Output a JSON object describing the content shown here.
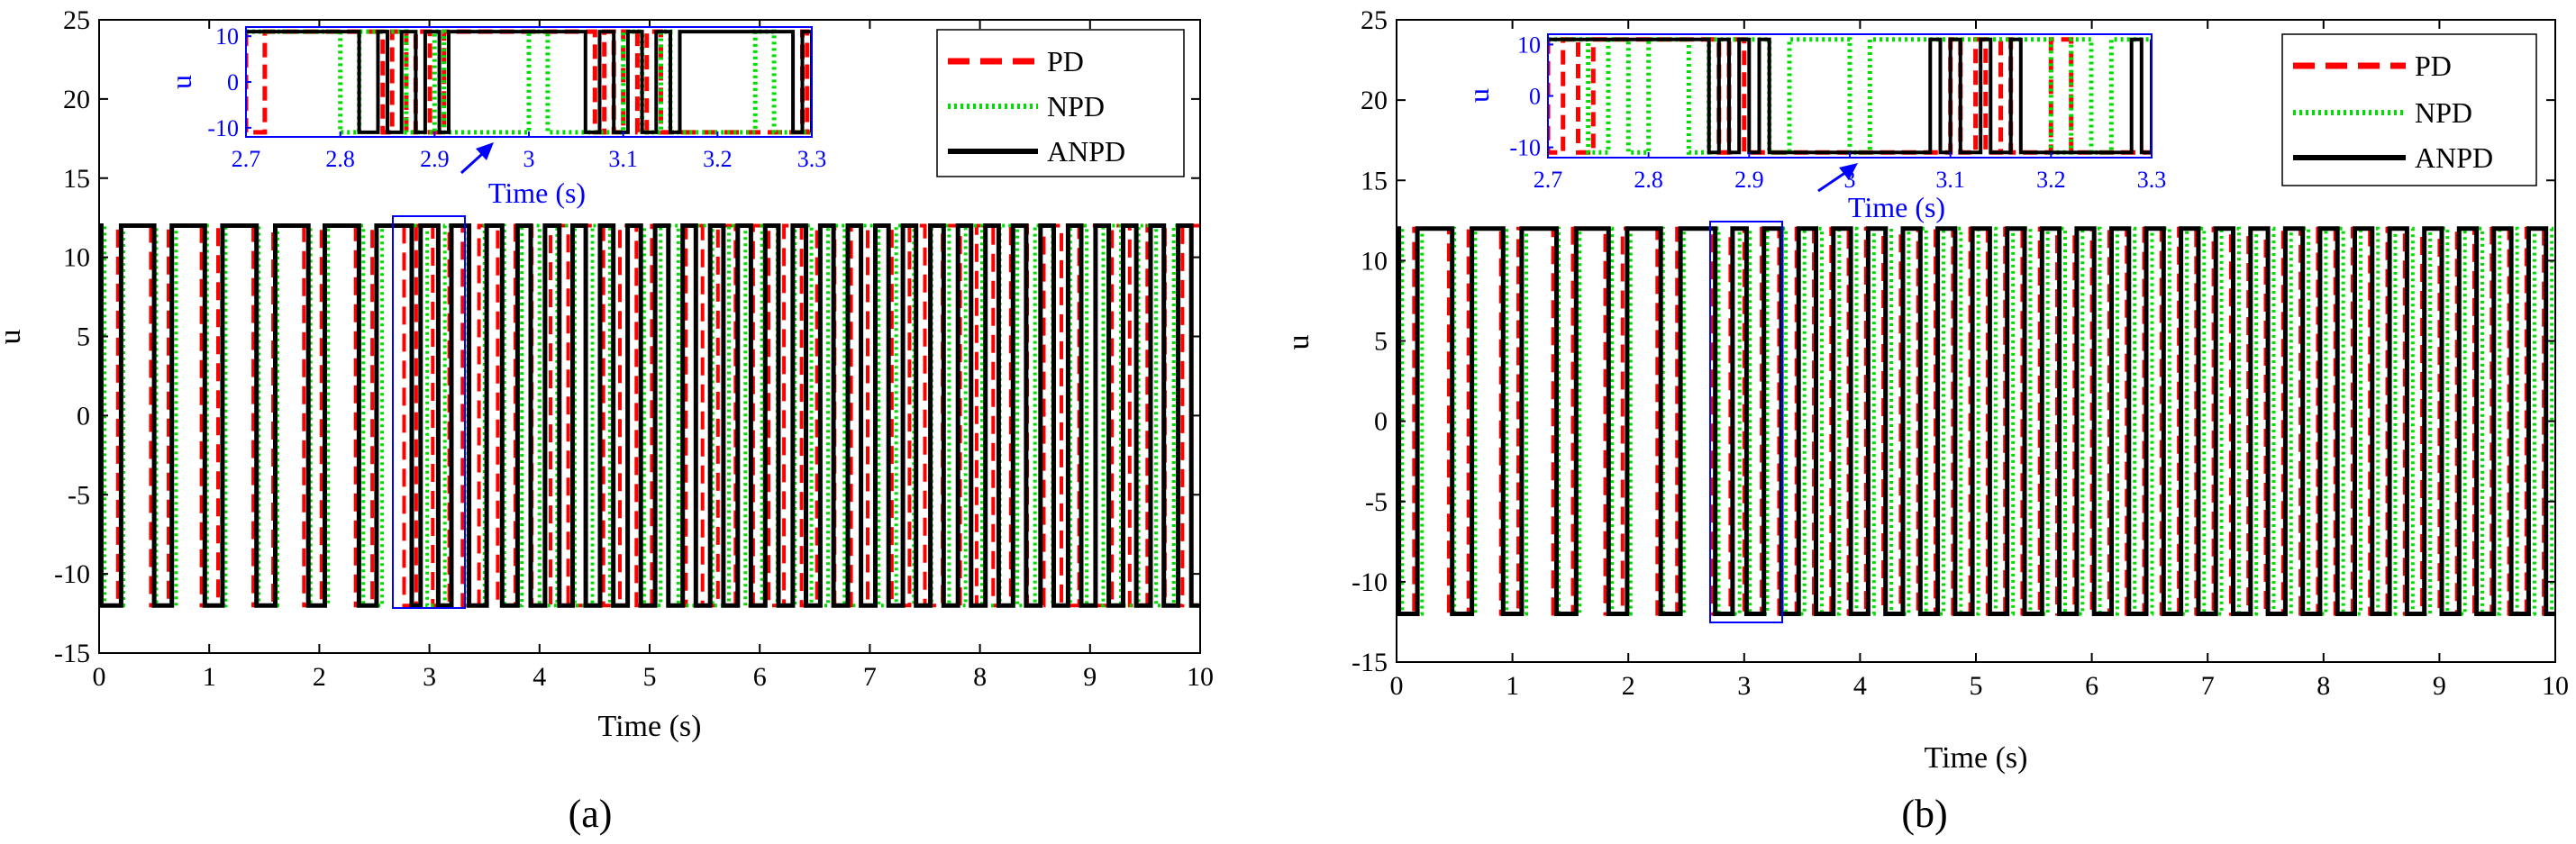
{
  "chart_data": [
    {
      "type": "line",
      "panel_label": "(a)",
      "xlabel": "Time (s)",
      "ylabel": "u",
      "xlim": [
        0,
        10
      ],
      "ylim": [
        -15,
        25
      ],
      "xticks": [
        0,
        1,
        2,
        3,
        4,
        5,
        6,
        7,
        8,
        9,
        10
      ],
      "yticks": [
        -15,
        -10,
        -5,
        0,
        5,
        10,
        15,
        20,
        25
      ],
      "amplitude": 12,
      "legend": [
        "PD",
        "NPD",
        "ANPD"
      ],
      "series": [
        {
          "name": "PD",
          "color": "#ff0000",
          "style": "dashed",
          "switch_times": [
            0.0,
            0.17,
            0.47,
            0.63,
            0.93,
            1.08,
            1.4,
            1.58,
            1.86,
            2.02,
            2.33,
            2.48,
            2.77,
            2.88,
            3.03,
            3.18,
            3.3,
            3.45,
            3.62,
            3.78,
            3.93,
            4.1,
            4.26,
            4.42,
            4.58,
            4.73,
            4.88,
            5.02,
            5.17,
            5.33,
            5.48,
            5.62,
            5.78,
            5.94,
            6.08,
            6.22,
            6.38,
            6.52,
            6.68,
            6.83,
            6.98,
            7.05,
            7.2,
            7.36,
            7.5,
            7.66,
            7.82,
            7.97,
            8.12,
            8.28,
            8.43,
            8.58,
            8.74,
            8.9,
            9.05,
            9.2,
            9.36,
            9.52,
            9.68,
            9.84
          ]
        },
        {
          "name": "NPD",
          "color": "#00dd00",
          "style": "dotted",
          "switch_times": [
            0.05,
            0.22,
            0.52,
            0.7,
            0.98,
            1.15,
            1.45,
            1.62,
            1.92,
            2.08,
            2.4,
            2.57,
            2.98,
            3.14,
            3.35,
            3.5,
            3.68,
            3.84,
            4.0,
            4.16,
            4.32,
            4.48,
            4.64,
            4.8,
            4.95,
            5.1,
            5.26,
            5.42,
            5.57,
            5.72,
            5.87,
            6.02,
            6.16,
            6.32,
            6.47,
            6.62,
            6.77,
            6.92,
            7.08,
            7.24,
            7.4,
            7.56,
            7.72,
            7.87,
            8.02,
            8.18,
            8.34,
            8.5,
            8.66,
            8.82,
            8.97,
            9.12,
            9.28,
            9.44,
            9.6,
            9.76,
            9.92
          ]
        },
        {
          "name": "ANPD",
          "color": "#000000",
          "style": "solid",
          "switch_times": [
            0.02,
            0.2,
            0.5,
            0.66,
            0.96,
            1.12,
            1.43,
            1.6,
            1.9,
            2.05,
            2.36,
            2.52,
            2.84,
            2.92,
            3.08,
            3.2,
            3.36,
            3.52,
            3.66,
            3.8,
            3.92,
            4.05,
            4.18,
            4.3,
            4.42,
            4.55,
            4.67,
            4.8,
            4.92,
            5.05,
            5.17,
            5.3,
            5.42,
            5.55,
            5.67,
            5.8,
            5.92,
            6.05,
            6.17,
            6.3,
            6.42,
            6.55,
            6.67,
            6.8,
            6.92,
            7.05,
            7.17,
            7.3,
            7.42,
            7.55,
            7.67,
            7.8,
            7.92,
            8.05,
            8.17,
            8.3,
            8.42,
            8.55,
            8.67,
            8.8,
            8.92,
            9.05,
            9.17,
            9.3,
            9.42,
            9.55,
            9.67,
            9.8,
            9.92
          ]
        }
      ],
      "inset": {
        "xlim": [
          2.7,
          3.3
        ],
        "ylim": [
          -12,
          12
        ],
        "xticks": [
          2.7,
          2.8,
          2.9,
          3.0,
          3.1,
          3.2,
          3.3
        ],
        "xtick_labels": [
          "2.7",
          "2.8",
          "2.9",
          "3",
          "3.1",
          "3.2",
          "3.3"
        ],
        "yticks": [
          10,
          0,
          -10
        ],
        "xlabel": "Time (s)",
        "ylabel": "u",
        "zoom_region": {
          "x": [
            2.7,
            3.35
          ],
          "y": [
            -13,
            13
          ]
        },
        "series": [
          {
            "name": "PD",
            "switch_times": [
              2.7,
              2.72,
              2.845,
              2.855,
              2.87,
              2.88,
              2.895,
              2.91,
              3.07,
              3.08,
              3.09,
              3.1,
              3.115,
              3.125,
              3.14,
              3.29,
              3.295
            ]
          },
          {
            "name": "NPD",
            "switch_times": [
              2.8,
              2.82,
              2.87,
              2.9,
              2.91,
              3.0,
              3.02,
              3.1,
              3.12,
              3.14,
              3.15,
              3.24,
              3.26
            ]
          },
          {
            "name": "ANPD",
            "switch_times": [
              2.82,
              2.84,
              2.85,
              2.865,
              2.88,
              2.89,
              2.905,
              2.915,
              3.06,
              3.075,
              3.09,
              3.105,
              3.12,
              3.135,
              3.15,
              3.16,
              3.28,
              3.29,
              3.3
            ]
          }
        ]
      }
    },
    {
      "type": "line",
      "panel_label": "(b)",
      "xlabel": "Time (s)",
      "ylabel": "u",
      "xlim": [
        0,
        10
      ],
      "ylim": [
        -15,
        25
      ],
      "xticks": [
        0,
        1,
        2,
        3,
        4,
        5,
        6,
        7,
        8,
        9,
        10
      ],
      "yticks": [
        -15,
        -10,
        -5,
        0,
        5,
        10,
        15,
        20,
        25
      ],
      "amplitude": 12,
      "legend": [
        "PD",
        "NPD",
        "ANPD"
      ],
      "series": [
        {
          "name": "PD",
          "color": "#ff0000",
          "style": "dashed",
          "switch_times": [
            0.0,
            0.15,
            0.45,
            0.62,
            0.9,
            1.05,
            1.35,
            1.52,
            1.8,
            1.95,
            2.25,
            2.42,
            2.72,
            2.88,
            3.0,
            3.15,
            3.3,
            3.45,
            3.6,
            3.75,
            3.9,
            4.05,
            4.2,
            4.35,
            4.5,
            4.65,
            4.8,
            4.95,
            5.1,
            5.25,
            5.4,
            5.55,
            5.7,
            5.85,
            6.0,
            6.15,
            6.3,
            6.45,
            6.6,
            6.75,
            6.9,
            7.05,
            7.2,
            7.35,
            7.5,
            7.65,
            7.8,
            7.95,
            8.1,
            8.25,
            8.4,
            8.55,
            8.7,
            8.85,
            9.0,
            9.15,
            9.3,
            9.45,
            9.6,
            9.75,
            9.9
          ]
        },
        {
          "name": "NPD",
          "color": "#00dd00",
          "style": "dotted",
          "switch_times": [
            0.05,
            0.22,
            0.5,
            0.68,
            0.95,
            1.12,
            1.4,
            1.58,
            1.86,
            2.02,
            2.3,
            2.48,
            2.78,
            2.96,
            3.05,
            3.2,
            3.36,
            3.52,
            3.67,
            3.82,
            3.97,
            4.12,
            4.27,
            4.42,
            4.57,
            4.72,
            4.87,
            5.02,
            5.17,
            5.32,
            5.47,
            5.62,
            5.77,
            5.92,
            6.07,
            6.22,
            6.37,
            6.52,
            6.67,
            6.82,
            6.97,
            7.12,
            7.27,
            7.42,
            7.57,
            7.72,
            7.87,
            8.02,
            8.17,
            8.32,
            8.47,
            8.62,
            8.77,
            8.92,
            9.07,
            9.22,
            9.37,
            9.52,
            9.67,
            9.82,
            9.97
          ]
        },
        {
          "name": "ANPD",
          "color": "#000000",
          "style": "solid",
          "switch_times": [
            0.02,
            0.18,
            0.48,
            0.65,
            0.92,
            1.08,
            1.38,
            1.55,
            1.83,
            1.99,
            2.28,
            2.45,
            2.75,
            2.9,
            3.02,
            3.17,
            3.32,
            3.47,
            3.62,
            3.77,
            3.92,
            4.07,
            4.22,
            4.37,
            4.52,
            4.67,
            4.82,
            4.97,
            5.12,
            5.27,
            5.42,
            5.57,
            5.72,
            5.87,
            6.02,
            6.17,
            6.32,
            6.47,
            6.62,
            6.77,
            6.92,
            7.07,
            7.22,
            7.37,
            7.52,
            7.67,
            7.82,
            7.97,
            8.12,
            8.27,
            8.42,
            8.57,
            8.72,
            8.87,
            9.02,
            9.17,
            9.32,
            9.47,
            9.62,
            9.77,
            9.92
          ]
        }
      ],
      "inset": {
        "xlim": [
          2.7,
          3.3
        ],
        "ylim": [
          -12,
          12
        ],
        "xticks": [
          2.7,
          2.8,
          2.9,
          3.0,
          3.1,
          3.2,
          3.3
        ],
        "xtick_labels": [
          "2.7",
          "2.8",
          "2.9",
          "3",
          "3.1",
          "3.2",
          "3.3"
        ],
        "yticks": [
          10,
          0,
          -10
        ],
        "xlabel": "Time (s)",
        "ylabel": "u",
        "zoom_region": {
          "x": [
            2.72,
            3.33
          ],
          "y": [
            -13,
            13
          ]
        },
        "series": [
          {
            "name": "PD",
            "switch_times": [
              2.7,
              2.715,
              2.73,
              2.745,
              2.87,
              2.88,
              2.895,
              3.1,
              3.11,
              3.125,
              3.135,
              3.15,
              3.16,
              3.2,
              3.22
            ]
          },
          {
            "name": "NPD",
            "switch_times": [
              2.74,
              2.76,
              2.78,
              2.8,
              2.84,
              2.86,
              2.92,
              2.94,
              3.0,
              3.02,
              3.2,
              3.22,
              3.24,
              3.26
            ]
          },
          {
            "name": "ANPD",
            "switch_times": [
              2.86,
              2.87,
              2.88,
              2.89,
              2.9,
              2.91,
              2.92,
              3.08,
              3.09,
              3.1,
              3.11,
              3.13,
              3.14,
              3.16,
              3.17,
              3.28,
              3.29,
              3.3
            ]
          }
        ]
      }
    }
  ]
}
